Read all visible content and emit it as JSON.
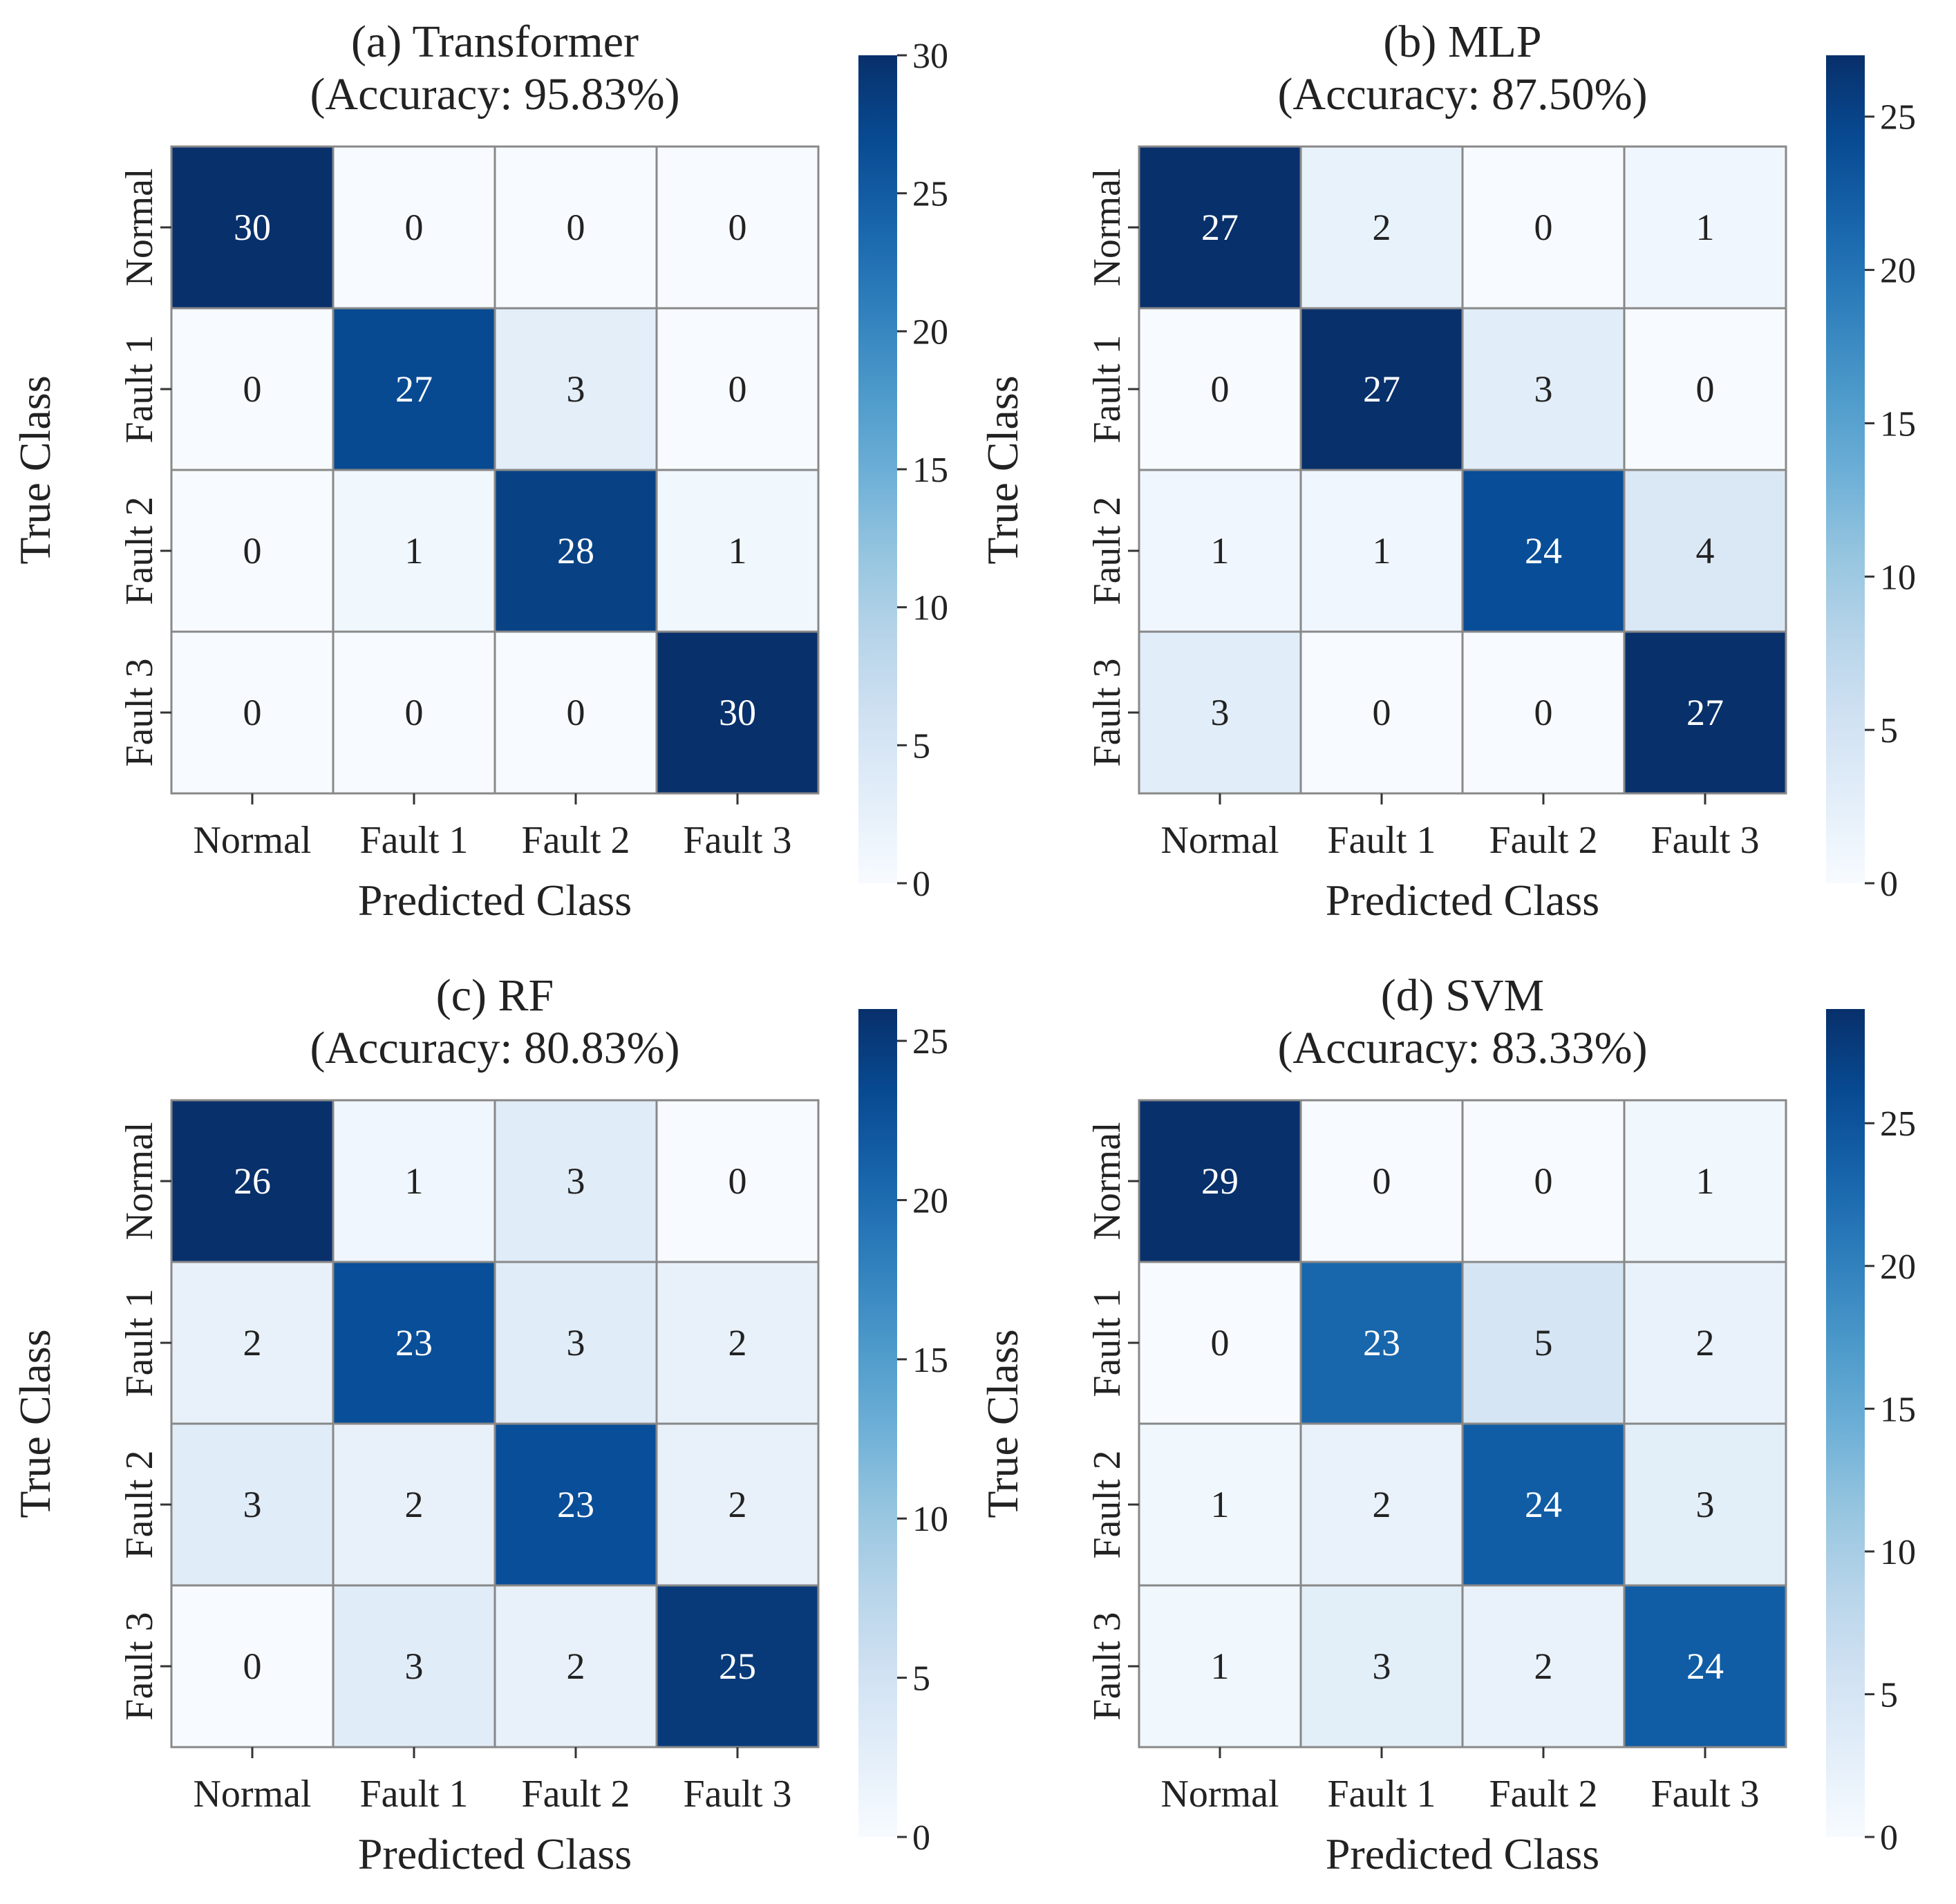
{
  "chart_data": [
    {
      "type": "heatmap",
      "title": "(a) Transformer",
      "subtitle": "(Accuracy: 95.83%)",
      "xlabel": "Predicted Class",
      "ylabel": "True Class",
      "x_categories": [
        "Normal",
        "Fault 1",
        "Fault 2",
        "Fault 3"
      ],
      "y_categories": [
        "Normal",
        "Fault 1",
        "Fault 2",
        "Fault 3"
      ],
      "matrix": [
        [
          30,
          0,
          0,
          0
        ],
        [
          0,
          27,
          3,
          0
        ],
        [
          0,
          1,
          28,
          1
        ],
        [
          0,
          0,
          0,
          30
        ]
      ],
      "colorbar": {
        "range": [
          0,
          30
        ],
        "ticks": [
          0,
          5,
          10,
          15,
          20,
          25,
          30
        ]
      },
      "colormap": "Blues"
    },
    {
      "type": "heatmap",
      "title": "(b) MLP",
      "subtitle": "(Accuracy: 87.50%)",
      "xlabel": "Predicted Class",
      "ylabel": "True Class",
      "x_categories": [
        "Normal",
        "Fault 1",
        "Fault 2",
        "Fault 3"
      ],
      "y_categories": [
        "Normal",
        "Fault 1",
        "Fault 2",
        "Fault 3"
      ],
      "matrix": [
        [
          27,
          2,
          0,
          1
        ],
        [
          0,
          27,
          3,
          0
        ],
        [
          1,
          1,
          24,
          4
        ],
        [
          3,
          0,
          0,
          27
        ]
      ],
      "colorbar": {
        "range": [
          0,
          27
        ],
        "ticks": [
          0,
          5,
          10,
          15,
          20,
          25
        ]
      },
      "colormap": "Blues"
    },
    {
      "type": "heatmap",
      "title": "(c) RF",
      "subtitle": "(Accuracy: 80.83%)",
      "xlabel": "Predicted Class",
      "ylabel": "True Class",
      "x_categories": [
        "Normal",
        "Fault 1",
        "Fault 2",
        "Fault 3"
      ],
      "y_categories": [
        "Normal",
        "Fault 1",
        "Fault 2",
        "Fault 3"
      ],
      "matrix": [
        [
          26,
          1,
          3,
          0
        ],
        [
          2,
          23,
          3,
          2
        ],
        [
          3,
          2,
          23,
          2
        ],
        [
          0,
          3,
          2,
          25
        ]
      ],
      "colorbar": {
        "range": [
          0,
          26
        ],
        "ticks": [
          0,
          5,
          10,
          15,
          20,
          25
        ]
      },
      "colormap": "Blues"
    },
    {
      "type": "heatmap",
      "title": "(d) SVM",
      "subtitle": "(Accuracy: 83.33%)",
      "xlabel": "Predicted Class",
      "ylabel": "True Class",
      "x_categories": [
        "Normal",
        "Fault 1",
        "Fault 2",
        "Fault 3"
      ],
      "y_categories": [
        "Normal",
        "Fault 1",
        "Fault 2",
        "Fault 3"
      ],
      "matrix": [
        [
          29,
          0,
          0,
          1
        ],
        [
          0,
          23,
          5,
          2
        ],
        [
          1,
          2,
          24,
          3
        ],
        [
          1,
          3,
          2,
          24
        ]
      ],
      "colorbar": {
        "range": [
          0,
          29
        ],
        "ticks": [
          0,
          5,
          10,
          15,
          20,
          25
        ]
      },
      "colormap": "Blues"
    }
  ],
  "colors": {
    "gridline": "#888888",
    "text_dark": "#222222",
    "text_light": "#ffffff",
    "blues_ramp": [
      "#f7fbff",
      "#deebf7",
      "#c6dbef",
      "#9ecae1",
      "#6baed6",
      "#4292c6",
      "#2171b5",
      "#08519c",
      "#08306b"
    ]
  }
}
